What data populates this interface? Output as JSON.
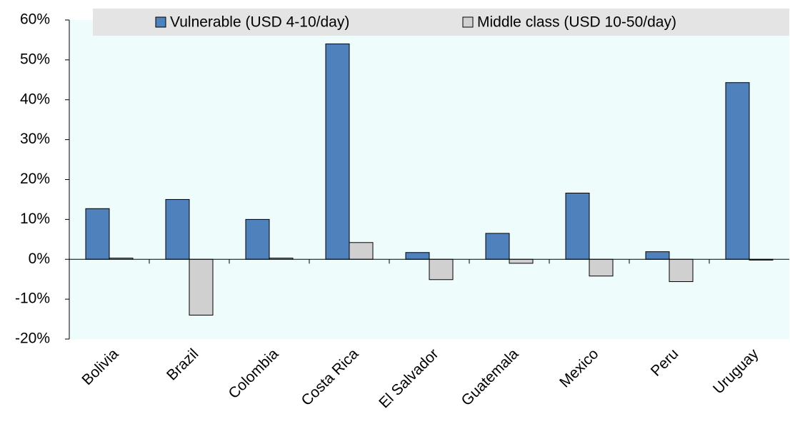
{
  "chart_data": {
    "type": "bar",
    "categories": [
      "Bolivia",
      "Brazil",
      "Colombia",
      "Costa Rica",
      "El Salvador",
      "Guatemala",
      "Mexico",
      "Peru",
      "Uruguay"
    ],
    "series": [
      {
        "name": "Vulnerable (USD 4-10/day)",
        "color": "#4f81bd",
        "values": [
          12.7,
          15.0,
          10.0,
          54.0,
          1.7,
          6.5,
          16.6,
          1.9,
          44.3
        ]
      },
      {
        "name": "Middle class (USD 10-50/day)",
        "color": "#d0d0d0",
        "values": [
          0.3,
          -14.0,
          0.3,
          4.2,
          -5.1,
          -1.0,
          -4.2,
          -5.6,
          -0.2
        ]
      }
    ],
    "ylim": [
      -20,
      60
    ],
    "yticks": [
      {
        "value": -20,
        "label": "-20%"
      },
      {
        "value": -10,
        "label": "-10%"
      },
      {
        "value": 0,
        "label": "0%"
      },
      {
        "value": 10,
        "label": "10%"
      },
      {
        "value": 20,
        "label": "20%"
      },
      {
        "value": 30,
        "label": "30%"
      },
      {
        "value": 40,
        "label": "40%"
      },
      {
        "value": 50,
        "label": "50%"
      },
      {
        "value": 60,
        "label": "60%"
      }
    ],
    "legend": "top",
    "grid": false
  }
}
